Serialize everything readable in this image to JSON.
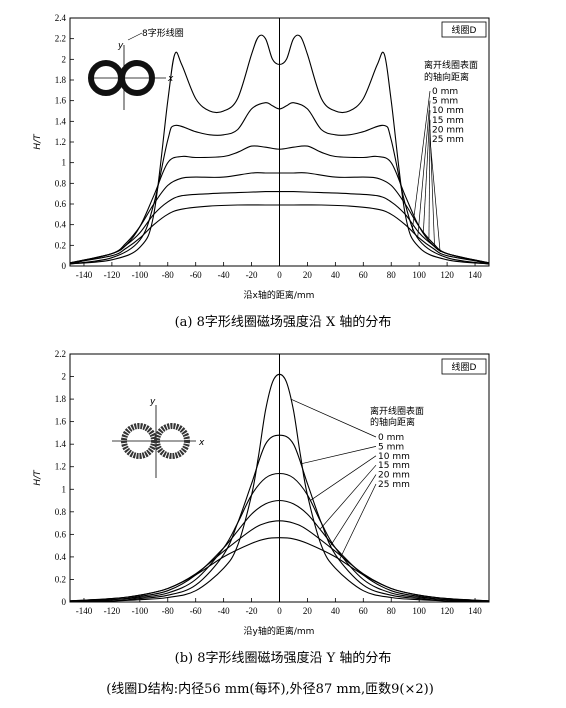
{
  "chart_data": [
    {
      "type": "line",
      "title": "",
      "badge": "线圈D",
      "xlabel": "沿x轴的距离/mm",
      "ylabel": "H/T",
      "xlim": [
        -150,
        150
      ],
      "ylim": [
        0,
        2.4
      ],
      "xticks": [
        -140,
        -120,
        -100,
        -80,
        -60,
        -40,
        -20,
        0,
        20,
        40,
        60,
        80,
        100,
        120,
        140
      ],
      "yticks": [
        0,
        0.2,
        0.4,
        0.6,
        0.8,
        1,
        1.2,
        1.4,
        1.6,
        1.8,
        2,
        2.2,
        2.4
      ],
      "ytick_labels": [
        "0",
        "0.2",
        "0.4",
        "0.6",
        "0.8",
        "1",
        "1.2",
        "1.4",
        "1.6",
        "1.8",
        "2",
        "2.2",
        "2.4"
      ],
      "legend_header": [
        "离开线圈表面",
        "的轴向距离"
      ],
      "coil_label": "8字形线圈",
      "axis_x_letter": "x",
      "axis_y_letter": "y",
      "series": [
        {
          "name": "0 mm",
          "x": [
            -150,
            -120,
            -100,
            -90,
            -80,
            -75,
            -70,
            -60,
            -50,
            -40,
            -30,
            -20,
            -15,
            -10,
            -5,
            0,
            5,
            10,
            15,
            20,
            30,
            40,
            50,
            60,
            70,
            75,
            80,
            90,
            100,
            120,
            150
          ],
          "y": [
            0.02,
            0.06,
            0.18,
            0.5,
            1.6,
            2.05,
            1.95,
            1.62,
            1.5,
            1.5,
            1.62,
            2.05,
            2.22,
            2.2,
            2.0,
            1.95,
            2.0,
            2.2,
            2.22,
            2.05,
            1.62,
            1.5,
            1.5,
            1.62,
            1.95,
            2.05,
            1.6,
            0.5,
            0.18,
            0.06,
            0.02
          ]
        },
        {
          "name": "5 mm",
          "x": [
            -150,
            -120,
            -100,
            -90,
            -80,
            -75,
            -60,
            -50,
            -40,
            -30,
            -20,
            -10,
            -5,
            0,
            5,
            10,
            20,
            30,
            40,
            50,
            60,
            75,
            80,
            90,
            100,
            120,
            150
          ],
          "y": [
            0.02,
            0.08,
            0.25,
            0.6,
            1.22,
            1.36,
            1.3,
            1.27,
            1.27,
            1.32,
            1.52,
            1.58,
            1.55,
            1.52,
            1.55,
            1.58,
            1.52,
            1.32,
            1.27,
            1.27,
            1.3,
            1.36,
            1.22,
            0.6,
            0.25,
            0.08,
            0.02
          ]
        },
        {
          "name": "10 mm",
          "x": [
            -150,
            -120,
            -110,
            -100,
            -90,
            -80,
            -70,
            -60,
            -40,
            -30,
            -20,
            -10,
            0,
            10,
            20,
            30,
            40,
            60,
            70,
            80,
            90,
            100,
            110,
            120,
            150
          ],
          "y": [
            0.02,
            0.12,
            0.2,
            0.38,
            0.68,
            1.0,
            1.06,
            1.05,
            1.06,
            1.1,
            1.16,
            1.15,
            1.13,
            1.15,
            1.16,
            1.1,
            1.06,
            1.05,
            1.06,
            1.0,
            0.68,
            0.38,
            0.2,
            0.12,
            0.02
          ]
        },
        {
          "name": "15 mm",
          "x": [
            -150,
            -120,
            -110,
            -100,
            -90,
            -80,
            -70,
            -60,
            -40,
            -20,
            -10,
            0,
            10,
            20,
            40,
            60,
            70,
            80,
            90,
            100,
            110,
            120,
            150
          ],
          "y": [
            0.03,
            0.12,
            0.22,
            0.38,
            0.6,
            0.78,
            0.85,
            0.86,
            0.86,
            0.9,
            0.9,
            0.9,
            0.9,
            0.9,
            0.86,
            0.86,
            0.85,
            0.78,
            0.6,
            0.38,
            0.22,
            0.12,
            0.03
          ]
        },
        {
          "name": "20 mm",
          "x": [
            -150,
            -120,
            -110,
            -100,
            -90,
            -80,
            -70,
            -50,
            -30,
            -10,
            0,
            10,
            30,
            50,
            70,
            80,
            90,
            100,
            110,
            120,
            150
          ],
          "y": [
            0.03,
            0.12,
            0.2,
            0.32,
            0.5,
            0.62,
            0.68,
            0.7,
            0.71,
            0.72,
            0.72,
            0.72,
            0.71,
            0.7,
            0.68,
            0.62,
            0.5,
            0.32,
            0.2,
            0.12,
            0.03
          ]
        },
        {
          "name": "25 mm",
          "x": [
            -150,
            -120,
            -110,
            -100,
            -90,
            -80,
            -70,
            -50,
            -30,
            -10,
            0,
            10,
            30,
            50,
            70,
            80,
            90,
            100,
            110,
            120,
            150
          ],
          "y": [
            0.03,
            0.1,
            0.17,
            0.27,
            0.4,
            0.5,
            0.55,
            0.58,
            0.59,
            0.59,
            0.59,
            0.59,
            0.59,
            0.58,
            0.55,
            0.5,
            0.4,
            0.27,
            0.17,
            0.1,
            0.03
          ]
        }
      ],
      "caption": "(a) 8字形线圈磁场强度沿 X 轴的分布"
    },
    {
      "type": "line",
      "title": "",
      "badge": "线圈D",
      "xlabel": "沿y轴的距离/mm",
      "ylabel": "H/T",
      "xlim": [
        -150,
        150
      ],
      "ylim": [
        0,
        2.2
      ],
      "xticks": [
        -140,
        -120,
        -100,
        -80,
        -60,
        -40,
        -20,
        0,
        20,
        40,
        60,
        80,
        100,
        120,
        140
      ],
      "yticks": [
        0,
        0.2,
        0.4,
        0.6,
        0.8,
        1,
        1.2,
        1.4,
        1.6,
        1.8,
        2,
        2.2
      ],
      "ytick_labels": [
        "0",
        "0.2",
        "0.4",
        "0.6",
        "0.8",
        "1",
        "1.2",
        "1.4",
        "1.6",
        "1.8",
        "2",
        "2.2"
      ],
      "legend_header": [
        "离开线圈表面",
        "的轴向距离"
      ],
      "axis_x_letter": "x",
      "axis_y_letter": "y",
      "series": [
        {
          "name": "0 mm",
          "x": [
            -150,
            -120,
            -100,
            -80,
            -60,
            -40,
            -30,
            -20,
            -15,
            -10,
            -5,
            0,
            5,
            10,
            15,
            20,
            30,
            40,
            60,
            80,
            100,
            120,
            150
          ],
          "y": [
            0.0,
            0.01,
            0.02,
            0.04,
            0.1,
            0.3,
            0.5,
            0.95,
            1.3,
            1.7,
            1.95,
            2.02,
            1.95,
            1.7,
            1.3,
            0.95,
            0.5,
            0.3,
            0.1,
            0.04,
            0.02,
            0.01,
            0.0
          ]
        },
        {
          "name": "5 mm",
          "x": [
            -150,
            -120,
            -100,
            -80,
            -60,
            -40,
            -30,
            -20,
            -10,
            0,
            10,
            20,
            30,
            40,
            60,
            80,
            100,
            120,
            150
          ],
          "y": [
            0.0,
            0.01,
            0.03,
            0.06,
            0.15,
            0.42,
            0.7,
            1.05,
            1.4,
            1.48,
            1.4,
            1.05,
            0.7,
            0.42,
            0.15,
            0.06,
            0.03,
            0.01,
            0.0
          ]
        },
        {
          "name": "10 mm",
          "x": [
            -150,
            -120,
            -100,
            -80,
            -60,
            -40,
            -30,
            -20,
            -10,
            0,
            10,
            20,
            30,
            40,
            60,
            80,
            100,
            120,
            150
          ],
          "y": [
            0.0,
            0.02,
            0.04,
            0.08,
            0.2,
            0.48,
            0.7,
            0.95,
            1.1,
            1.14,
            1.1,
            0.95,
            0.7,
            0.48,
            0.2,
            0.08,
            0.04,
            0.02,
            0.0
          ]
        },
        {
          "name": "15 mm",
          "x": [
            -150,
            -120,
            -100,
            -80,
            -60,
            -40,
            -30,
            -20,
            -10,
            0,
            10,
            20,
            30,
            40,
            60,
            80,
            100,
            120,
            150
          ],
          "y": [
            0.01,
            0.02,
            0.05,
            0.1,
            0.24,
            0.48,
            0.63,
            0.78,
            0.87,
            0.9,
            0.87,
            0.78,
            0.63,
            0.48,
            0.24,
            0.1,
            0.05,
            0.02,
            0.01
          ]
        },
        {
          "name": "20 mm",
          "x": [
            -150,
            -120,
            -100,
            -80,
            -60,
            -40,
            -20,
            -10,
            0,
            10,
            20,
            40,
            60,
            80,
            100,
            120,
            150
          ],
          "y": [
            0.01,
            0.03,
            0.06,
            0.12,
            0.25,
            0.45,
            0.64,
            0.7,
            0.72,
            0.7,
            0.64,
            0.45,
            0.25,
            0.12,
            0.06,
            0.03,
            0.01
          ]
        },
        {
          "name": "25 mm",
          "x": [
            -150,
            -120,
            -100,
            -80,
            -60,
            -40,
            -20,
            -10,
            0,
            10,
            20,
            40,
            60,
            80,
            100,
            120,
            150
          ],
          "y": [
            0.01,
            0.03,
            0.06,
            0.12,
            0.24,
            0.4,
            0.52,
            0.56,
            0.57,
            0.56,
            0.52,
            0.4,
            0.24,
            0.12,
            0.06,
            0.03,
            0.01
          ]
        }
      ],
      "caption": "(b) 8字形线圈磁场强度沿 Y 轴的分布"
    }
  ],
  "footnote": "(线圈D结构:内径56 mm(每环),外径87 mm,匝数9(×2))"
}
